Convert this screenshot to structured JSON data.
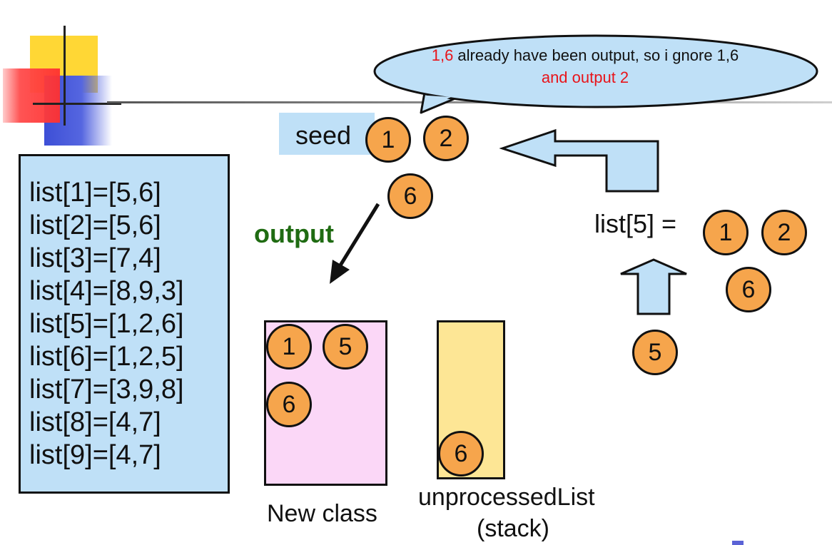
{
  "bubble": {
    "part1_red": "1,6",
    "part2": " already have been output, so i gnore 1,6 ",
    "part3_red": "and output 2"
  },
  "seed": {
    "label": "seed",
    "circles": [
      "1",
      "2",
      "6"
    ]
  },
  "output_label": "output",
  "adjacency_list": [
    "list[1]=[5,6]",
    "list[2]=[5,6]",
    "list[3]=[7,4]",
    "list[4]=[8,9,3]",
    "list[5]=[1,2,6]",
    "list[6]=[1,2,5]",
    "list[7]=[3,9,8]",
    "list[8]=[4,7]",
    "list[9]=[4,7]"
  ],
  "new_class": {
    "label": "New class",
    "circles": [
      "1",
      "5",
      "6"
    ]
  },
  "unprocessed": {
    "label_line1": "unprocessedList",
    "label_line2": "(stack)",
    "circles": [
      "6"
    ]
  },
  "list5": {
    "label": "list[5] =",
    "circles": [
      "1",
      "2",
      "6"
    ]
  },
  "current_node": "5",
  "colors": {
    "node_fill": "#f6a54c",
    "panel_blue": "#bfe0f7",
    "class_pink": "#fbd7f7",
    "stack_yellow": "#fde695",
    "output_green": "#1f6b12",
    "highlight_red": "#e8141a"
  }
}
